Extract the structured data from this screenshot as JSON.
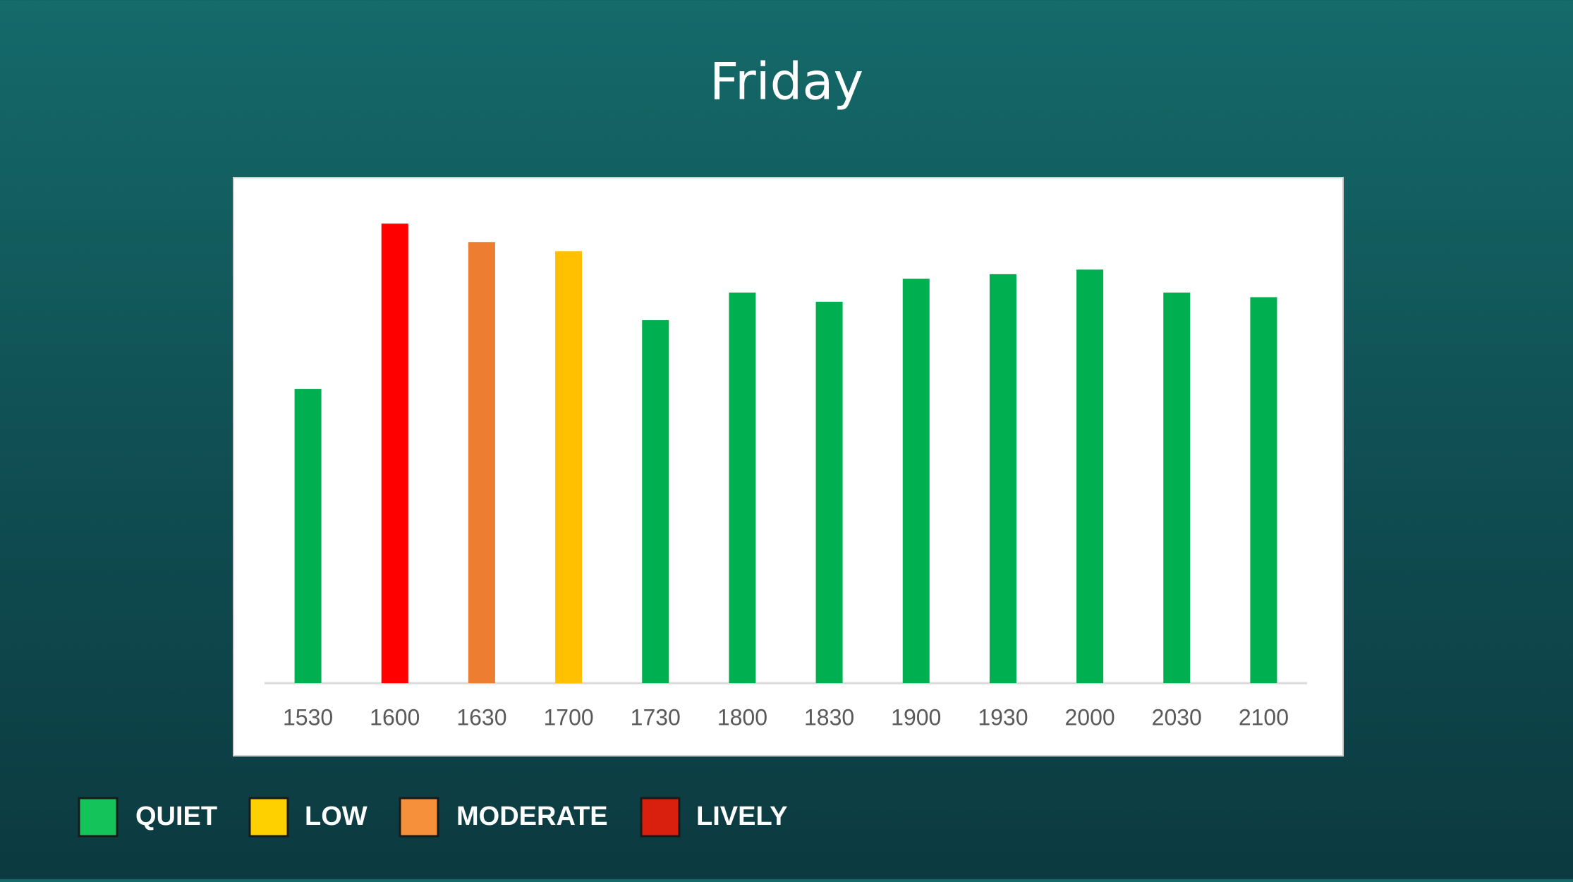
{
  "chart_data": {
    "type": "bar",
    "title": "Friday",
    "categories": [
      "1530",
      "1600",
      "1630",
      "1700",
      "1730",
      "1800",
      "1830",
      "1900",
      "1930",
      "2000",
      "2030",
      "2100"
    ],
    "values": [
      64,
      100,
      96,
      94,
      79,
      85,
      83,
      88,
      89,
      90,
      85,
      84
    ],
    "colors": [
      "#00b050",
      "#ff0000",
      "#ed7d31",
      "#ffc000",
      "#00b050",
      "#00b050",
      "#00b050",
      "#00b050",
      "#00b050",
      "#00b050",
      "#00b050",
      "#00b050"
    ],
    "ylim": [
      0,
      110
    ],
    "legend": [
      {
        "label": "QUIET",
        "color": "#14c45a"
      },
      {
        "label": "LOW",
        "color": "#ffd000"
      },
      {
        "label": "MODERATE",
        "color": "#f7903a"
      },
      {
        "label": "LIVELY",
        "color": "#d9200f"
      }
    ]
  }
}
